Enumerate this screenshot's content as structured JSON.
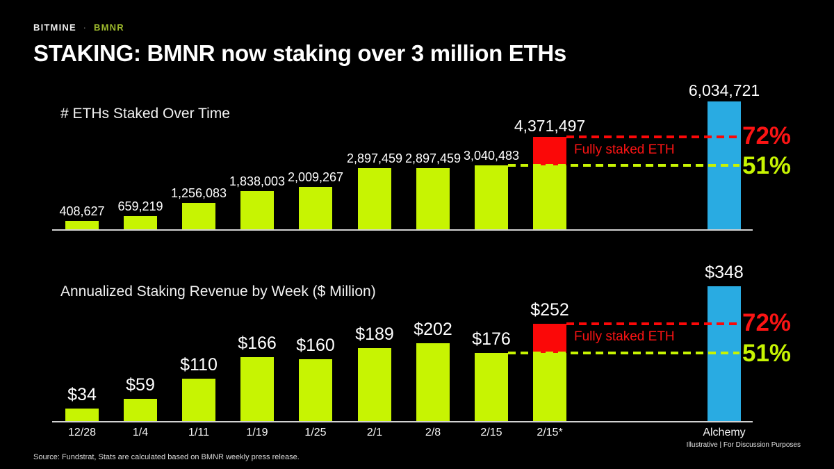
{
  "header": {
    "brand": "BITMINE",
    "separator": "·",
    "ticker": "BMNR"
  },
  "title": "STAKING: BMNR now staking over 3 million ETHs",
  "colors": {
    "background": "#000000",
    "bar_green": "#c7f402",
    "bar_red": "#fb0808",
    "bar_blue": "#29abe2",
    "pct_red": "#fb1414",
    "pct_green": "#c7f402",
    "axis": "#d2d2d2",
    "ticker_green": "#9cb82c"
  },
  "chart_data": [
    {
      "type": "bar",
      "title": "# ETHs Staked Over Time",
      "categories": [
        "12/28",
        "1/4",
        "1/11",
        "1/19",
        "1/25",
        "2/1",
        "2/8",
        "2/15",
        "2/15*",
        "Alchemy"
      ],
      "values": [
        408627,
        659219,
        1256083,
        1838003,
        2009267,
        2897459,
        2897459,
        3040483,
        4371497,
        6034721
      ],
      "labels": [
        "408,627",
        "659,219",
        "1,256,083",
        "1,838,003",
        "2,009,267",
        "2,897,459",
        "2,897,459",
        "3,040,483",
        "4,371,497",
        "6,034,721"
      ],
      "bar_colors": [
        "green",
        "green",
        "green",
        "green",
        "green",
        "green",
        "green",
        "green",
        "stacked",
        "blue"
      ],
      "stacked_base_value": 3040483,
      "ylim": [
        0,
        6034721
      ],
      "grid": false,
      "annotations": {
        "red_line_value": 4371497,
        "green_line_value": 3040483,
        "red_line_label": "72%",
        "green_line_label": "51%",
        "red_region_label": "Fully staked ETH"
      }
    },
    {
      "type": "bar",
      "title": "Annualized Staking Revenue by Week ($ Million)",
      "categories": [
        "12/28",
        "1/4",
        "1/11",
        "1/19",
        "1/25",
        "2/1",
        "2/8",
        "2/15",
        "2/15*",
        "Alchemy"
      ],
      "values": [
        34,
        59,
        110,
        166,
        160,
        189,
        202,
        176,
        252,
        348
      ],
      "labels": [
        "$34",
        "$59",
        "$110",
        "$166",
        "$160",
        "$189",
        "$202",
        "$176",
        "$252",
        "$348"
      ],
      "bar_colors": [
        "green",
        "green",
        "green",
        "green",
        "green",
        "green",
        "green",
        "green",
        "stacked",
        "blue"
      ],
      "stacked_base_value": 176,
      "ylim": [
        0,
        348
      ],
      "grid": false,
      "annotations": {
        "red_line_value": 252,
        "green_line_value": 176,
        "red_line_label": "72%",
        "green_line_label": "51%",
        "red_region_label": "Fully staked ETH"
      }
    }
  ],
  "footer": {
    "source": "Source: Fundstrat, Stats are calculated based on BMNR weekly press release.",
    "disclaimer": "Illustrative   |   For Discussion Purposes"
  }
}
